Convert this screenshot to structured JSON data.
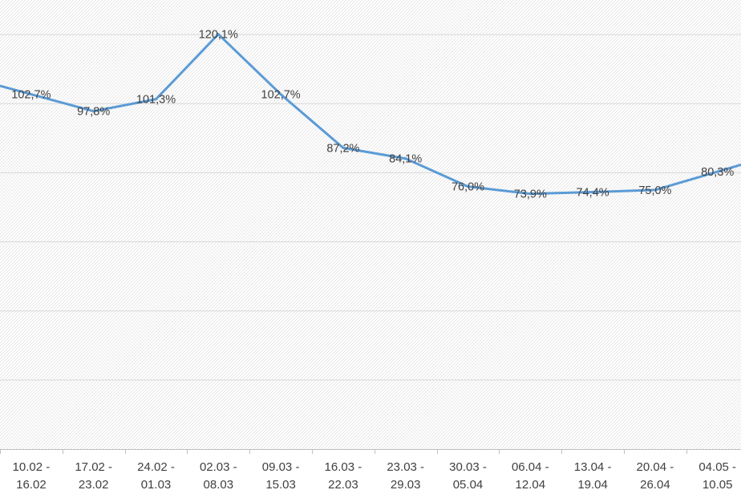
{
  "chart_data": {
    "type": "line",
    "title": "",
    "xlabel": "",
    "ylabel": "",
    "ylim": [
      0,
      130
    ],
    "grid": true,
    "categories": [
      [
        "10.02 -",
        "16.02"
      ],
      [
        "17.02 -",
        "23.02"
      ],
      [
        "24.02 -",
        "01.03"
      ],
      [
        "02.03 -",
        "08.03"
      ],
      [
        "09.03 -",
        "15.03"
      ],
      [
        "16.03 -",
        "22.03"
      ],
      [
        "23.03 -",
        "29.03"
      ],
      [
        "30.03 -",
        "05.04"
      ],
      [
        "06.04 -",
        "12.04"
      ],
      [
        "13.04 -",
        "19.04"
      ],
      [
        "20.04 -",
        "26.04"
      ],
      [
        "04.05 -",
        "10.05"
      ]
    ],
    "series": [
      {
        "name": "",
        "values": [
          102.7,
          97.8,
          101.3,
          120.1,
          102.7,
          87.2,
          84.1,
          76.0,
          73.9,
          74.4,
          75.0,
          80.3
        ],
        "labels": [
          "102,7%",
          "97,8%",
          "101,3%",
          "120,1%",
          "102,7%",
          "87,2%",
          "84,1%",
          "76,0%",
          "73,9%",
          "74,4%",
          "75,0%",
          "80,3%"
        ],
        "color": "#5b9bd5"
      }
    ],
    "grid_color": "#d9d9d9",
    "axis_color": "#bfbfbf",
    "text_color": "#404040"
  }
}
